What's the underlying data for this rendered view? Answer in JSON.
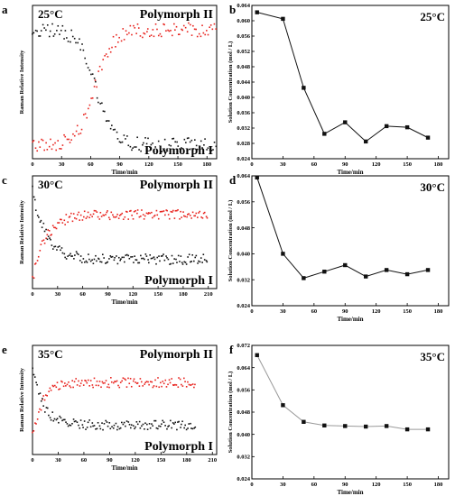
{
  "chart_data": [
    {
      "panel": "a",
      "type": "scatter",
      "temperature": "25°C",
      "xlabel": "Time/min",
      "ylabel": "Raman Relative Intensity",
      "xlim": [
        0,
        190
      ],
      "ylim": [
        0,
        1
      ],
      "xticks": [
        "0",
        "30",
        "60",
        "90",
        "120",
        "150",
        "180"
      ],
      "yticks": [],
      "series_labels": [
        "Polymorph II",
        "Polymorph I"
      ],
      "colors": [
        "#e8231e",
        "#111111"
      ],
      "transition": {
        "type": "sigmoid",
        "midpoint_min": 65,
        "width_min": 9,
        "high": 0.84,
        "low": 0.09
      },
      "sampling": {
        "start": 0,
        "end": 190,
        "step": 1.55
      }
    },
    {
      "panel": "b",
      "type": "line",
      "temperature": "25°C",
      "xlabel": "Time/min",
      "ylabel": "Solution Concentration (mol / L)",
      "xlim": [
        0,
        190
      ],
      "ylim": [
        0.024,
        0.064
      ],
      "xticks": [
        "0",
        "30",
        "60",
        "90",
        "120",
        "150",
        "180"
      ],
      "yticks": [
        "0.024",
        "0.028",
        "0.032",
        "0.036",
        "0.040",
        "0.044",
        "0.048",
        "0.052",
        "0.056",
        "0.060",
        "0.064"
      ],
      "x": [
        5,
        30,
        50,
        70,
        90,
        110,
        130,
        150,
        170
      ],
      "y": [
        0.0622,
        0.0605,
        0.0425,
        0.0305,
        0.0335,
        0.0285,
        0.0325,
        0.0322,
        0.0295
      ],
      "line_color": "#111111"
    },
    {
      "panel": "c",
      "type": "scatter",
      "temperature": "30°C",
      "xlabel": "Time/min",
      "ylabel": "Raman Relative Intensity",
      "xlim": [
        0,
        220
      ],
      "ylim": [
        0,
        1
      ],
      "xticks": [
        "0",
        "30",
        "60",
        "90",
        "120",
        "150",
        "180",
        "210"
      ],
      "yticks": [],
      "series_labels": [
        "Polymorph II",
        "Polymorph I"
      ],
      "colors": [
        "#e8231e",
        "#111111"
      ],
      "transition": {
        "type": "exponential",
        "tau_min": 16,
        "start_high": 0.88,
        "start_low": 0.08,
        "end_high": 0.66,
        "end_low": 0.26
      },
      "sampling": {
        "start": 0,
        "end": 210,
        "step": 1.45
      }
    },
    {
      "panel": "d",
      "type": "line",
      "temperature": "30°C",
      "xlabel": "Time/min",
      "ylabel": "Solution Concentration (mol / L)",
      "xlim": [
        0,
        190
      ],
      "ylim": [
        0.024,
        0.064
      ],
      "xticks": [
        "0",
        "30",
        "60",
        "90",
        "120",
        "150",
        "180"
      ],
      "yticks": [
        "0.024",
        "0.032",
        "0.040",
        "0.048",
        "0.056",
        "0.064"
      ],
      "x": [
        5,
        30,
        50,
        70,
        90,
        110,
        130,
        150,
        170
      ],
      "y": [
        0.0635,
        0.04,
        0.0325,
        0.0345,
        0.0365,
        0.033,
        0.035,
        0.0337,
        0.035
      ],
      "line_color": "#111111"
    },
    {
      "panel": "e",
      "type": "scatter",
      "temperature": "35°C",
      "xlabel": "Time/min",
      "ylabel": "Raman Relative Intensity",
      "xlim": [
        0,
        215
      ],
      "ylim": [
        0,
        1
      ],
      "xticks": [
        "0",
        "30",
        "60",
        "90",
        "120",
        "150",
        "180",
        "210"
      ],
      "yticks": [],
      "series_labels": [
        "Polymorph II",
        "Polymorph I"
      ],
      "colors": [
        "#e8231e",
        "#111111"
      ],
      "transition": {
        "type": "exponential",
        "tau_min": 12,
        "start_high": 0.8,
        "start_low": 0.17,
        "end_high": 0.66,
        "end_low": 0.27
      },
      "sampling": {
        "start": 0,
        "end": 190,
        "step": 1.45
      }
    },
    {
      "panel": "f",
      "type": "line",
      "temperature": "35°C",
      "xlabel": "Time/min",
      "ylabel": "Solution Concentration (mol / L)",
      "xlim": [
        0,
        190
      ],
      "ylim": [
        0.024,
        0.072
      ],
      "xticks": [
        "0",
        "30",
        "60",
        "90",
        "120",
        "150",
        "180"
      ],
      "yticks": [
        "0.024",
        "0.032",
        "0.040",
        "0.048",
        "0.056",
        "0.064",
        "0.072"
      ],
      "x": [
        5,
        30,
        50,
        70,
        90,
        110,
        130,
        150,
        170
      ],
      "y": [
        0.0685,
        0.0505,
        0.0445,
        0.0432,
        0.043,
        0.0428,
        0.043,
        0.0418,
        0.0418
      ],
      "line_color": "#9a9a9a"
    }
  ]
}
